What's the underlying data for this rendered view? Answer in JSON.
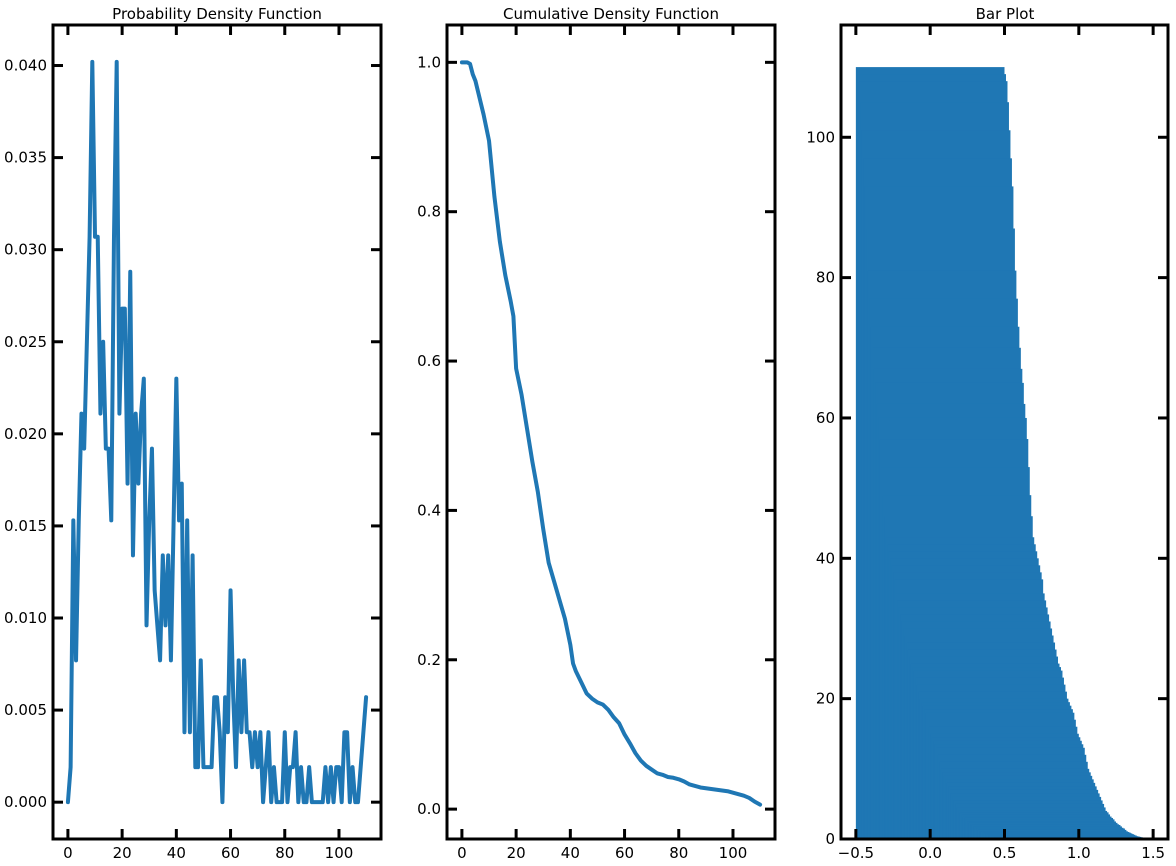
{
  "chart_data": [
    {
      "type": "line",
      "title": "Probability Density Function",
      "xlabel": "",
      "ylabel": "",
      "xlim": [
        -5.5,
        115.5
      ],
      "ylim": [
        -0.002,
        0.0422
      ],
      "xticks": [
        0,
        20,
        40,
        60,
        80,
        100
      ],
      "xtick_labels": [
        "0",
        "20",
        "40",
        "60",
        "80",
        "100"
      ],
      "yticks": [
        0.0,
        0.005,
        0.01,
        0.015,
        0.02,
        0.025,
        0.03,
        0.035,
        0.04
      ],
      "ytick_labels": [
        "0.000",
        "0.005",
        "0.010",
        "0.015",
        "0.020",
        "0.025",
        "0.030",
        "0.035",
        "0.040"
      ],
      "color": "#1f77b4",
      "grid": false,
      "x": [
        0,
        1,
        2,
        3,
        4,
        5,
        6,
        7,
        8,
        9,
        10,
        11,
        12,
        13,
        14,
        15,
        16,
        17,
        18,
        19,
        20,
        21,
        22,
        23,
        24,
        25,
        26,
        27,
        28,
        29,
        30,
        31,
        32,
        33,
        34,
        35,
        36,
        37,
        38,
        39,
        40,
        41,
        42,
        43,
        44,
        45,
        46,
        47,
        48,
        49,
        50,
        51,
        52,
        53,
        54,
        55,
        56,
        57,
        58,
        59,
        60,
        61,
        62,
        63,
        64,
        65,
        66,
        67,
        68,
        69,
        70,
        71,
        72,
        73,
        74,
        75,
        76,
        77,
        78,
        79,
        80,
        81,
        82,
        83,
        84,
        85,
        86,
        87,
        88,
        89,
        90,
        91,
        92,
        93,
        94,
        95,
        96,
        97,
        98,
        99,
        100,
        101,
        102,
        103,
        104,
        105,
        106,
        107,
        108,
        109,
        110
      ],
      "y": [
        0.0,
        0.0019,
        0.0153,
        0.0077,
        0.0153,
        0.0211,
        0.0192,
        0.025,
        0.0307,
        0.0402,
        0.0307,
        0.0307,
        0.0211,
        0.025,
        0.0192,
        0.0192,
        0.0153,
        0.0307,
        0.0402,
        0.0211,
        0.0268,
        0.0268,
        0.0173,
        0.0288,
        0.0134,
        0.0211,
        0.0173,
        0.0211,
        0.023,
        0.0096,
        0.0153,
        0.0192,
        0.0115,
        0.0096,
        0.0077,
        0.0134,
        0.0096,
        0.0134,
        0.0077,
        0.0153,
        0.023,
        0.0153,
        0.0173,
        0.0038,
        0.0153,
        0.0038,
        0.0134,
        0.0019,
        0.0019,
        0.0077,
        0.0019,
        0.0019,
        0.0019,
        0.0019,
        0.0057,
        0.0057,
        0.0038,
        0.0,
        0.0057,
        0.0038,
        0.0115,
        0.0057,
        0.0019,
        0.0077,
        0.0038,
        0.0077,
        0.0038,
        0.0038,
        0.0019,
        0.0038,
        0.0019,
        0.0038,
        0.0,
        0.0019,
        0.0038,
        0.0,
        0.0019,
        0.0,
        0.0,
        0.0,
        0.0038,
        0.0,
        0.0019,
        0.0019,
        0.0038,
        0.0,
        0.0019,
        0.0,
        0.0,
        0.0019,
        0.0,
        0.0,
        0.0,
        0.0,
        0.0,
        0.0019,
        0.0,
        0.0019,
        0.0,
        0.0019,
        0.0019,
        0.0,
        0.0038,
        0.0038,
        0.0,
        0.0019,
        0.0,
        0.0,
        0.0019,
        0.0038,
        0.0057
      ]
    },
    {
      "type": "line",
      "title": "Cumulative Density Function",
      "xlabel": "",
      "ylabel": "",
      "xlim": [
        -5.5,
        115.5
      ],
      "ylim": [
        -0.04,
        1.05
      ],
      "xticks": [
        0,
        20,
        40,
        60,
        80,
        100
      ],
      "xtick_labels": [
        "0",
        "20",
        "40",
        "60",
        "80",
        "100"
      ],
      "yticks": [
        0.0,
        0.2,
        0.4,
        0.6,
        0.8,
        1.0
      ],
      "ytick_labels": [
        "0.0",
        "0.2",
        "0.4",
        "0.6",
        "0.8",
        "1.0"
      ],
      "color": "#1f77b4",
      "grid": false,
      "x": [
        0,
        2,
        3,
        4,
        5,
        6,
        8,
        10,
        12,
        14,
        16,
        18,
        19,
        20,
        22,
        24,
        26,
        28,
        30,
        32,
        34,
        36,
        38,
        40,
        41,
        42,
        44,
        46,
        48,
        50,
        52,
        54,
        56,
        58,
        60,
        62,
        64,
        66,
        68,
        70,
        72,
        74,
        76,
        78,
        80,
        82,
        84,
        86,
        88,
        90,
        92,
        94,
        96,
        98,
        100,
        102,
        104,
        106,
        108,
        110
      ],
      "y": [
        1.0,
        1.0,
        0.998,
        0.984,
        0.975,
        0.96,
        0.93,
        0.895,
        0.82,
        0.76,
        0.715,
        0.68,
        0.66,
        0.59,
        0.555,
        0.51,
        0.465,
        0.425,
        0.375,
        0.33,
        0.305,
        0.28,
        0.255,
        0.22,
        0.195,
        0.185,
        0.17,
        0.155,
        0.148,
        0.143,
        0.14,
        0.133,
        0.123,
        0.115,
        0.1,
        0.088,
        0.075,
        0.065,
        0.058,
        0.053,
        0.048,
        0.046,
        0.043,
        0.042,
        0.04,
        0.037,
        0.033,
        0.031,
        0.029,
        0.028,
        0.027,
        0.026,
        0.025,
        0.024,
        0.022,
        0.02,
        0.018,
        0.015,
        0.01,
        0.006
      ]
    },
    {
      "type": "bar",
      "title": "Bar Plot",
      "xlabel": "",
      "ylabel": "",
      "xlim": [
        -0.6,
        1.6
      ],
      "ylim": [
        0,
        116
      ],
      "xticks": [
        -0.5,
        0.0,
        0.5,
        1.0,
        1.5
      ],
      "xtick_labels": [
        "−0.5",
        "0.0",
        "0.5",
        "1.0",
        "1.5"
      ],
      "yticks": [
        0,
        20,
        40,
        60,
        80,
        100
      ],
      "ytick_labels": [
        "0",
        "20",
        "40",
        "60",
        "80",
        "100"
      ],
      "color": "#1f77b4",
      "grid": false,
      "bar_width": 1.0,
      "bar_offsets": [
        0.0,
        0.01,
        0.02,
        0.03,
        0.04,
        0.05,
        0.06,
        0.07,
        0.08,
        0.09,
        0.1,
        0.11,
        0.12,
        0.13,
        0.14,
        0.15,
        0.16,
        0.17,
        0.18,
        0.19,
        0.2,
        0.21,
        0.22,
        0.23,
        0.24,
        0.25,
        0.26,
        0.27,
        0.28,
        0.29,
        0.3,
        0.31,
        0.32,
        0.33,
        0.34,
        0.35,
        0.36,
        0.37,
        0.38,
        0.39,
        0.4,
        0.41,
        0.42,
        0.43,
        0.44,
        0.45,
        0.46,
        0.47,
        0.48,
        0.49,
        0.5,
        0.51,
        0.52,
        0.53,
        0.54,
        0.55,
        0.56,
        0.57,
        0.58,
        0.59,
        0.6,
        0.61,
        0.62,
        0.63,
        0.64,
        0.65,
        0.66,
        0.67,
        0.68,
        0.69,
        0.7,
        0.71,
        0.72,
        0.73,
        0.74,
        0.75,
        0.76,
        0.77,
        0.78,
        0.79,
        0.8,
        0.81,
        0.82,
        0.83,
        0.84,
        0.85,
        0.86,
        0.87,
        0.88,
        0.89,
        0.9,
        0.91,
        0.92,
        0.93,
        0.94,
        0.95,
        0.96,
        0.97,
        0.98,
        0.99,
        1.0
      ],
      "values": [
        110,
        109,
        108,
        105,
        101,
        97,
        93,
        87,
        81,
        77,
        73,
        70,
        67,
        65,
        62,
        60,
        57,
        53,
        49,
        46,
        43,
        42,
        41,
        40,
        39,
        38,
        37,
        35,
        34,
        33,
        32,
        31,
        30,
        29,
        28,
        27,
        26,
        25,
        24.5,
        24,
        23,
        22,
        21,
        20,
        19.5,
        19,
        18.5,
        18,
        17,
        16,
        15,
        14.5,
        14,
        13.5,
        13,
        12,
        11,
        10,
        9.5,
        9,
        8.5,
        8,
        7.5,
        7,
        6.5,
        6,
        5.5,
        5,
        4.5,
        4,
        3.8,
        3.5,
        3.2,
        3,
        2.8,
        2.5,
        2.3,
        2.1,
        2,
        1.8,
        1.6,
        1.5,
        1.3,
        1.1,
        1,
        0.9,
        0.8,
        0.7,
        0.6,
        0.5,
        0.4,
        0.35,
        0.3,
        0.25,
        0.2,
        0.15,
        0.1,
        0.08,
        0.05,
        0.03,
        0.01
      ]
    }
  ]
}
